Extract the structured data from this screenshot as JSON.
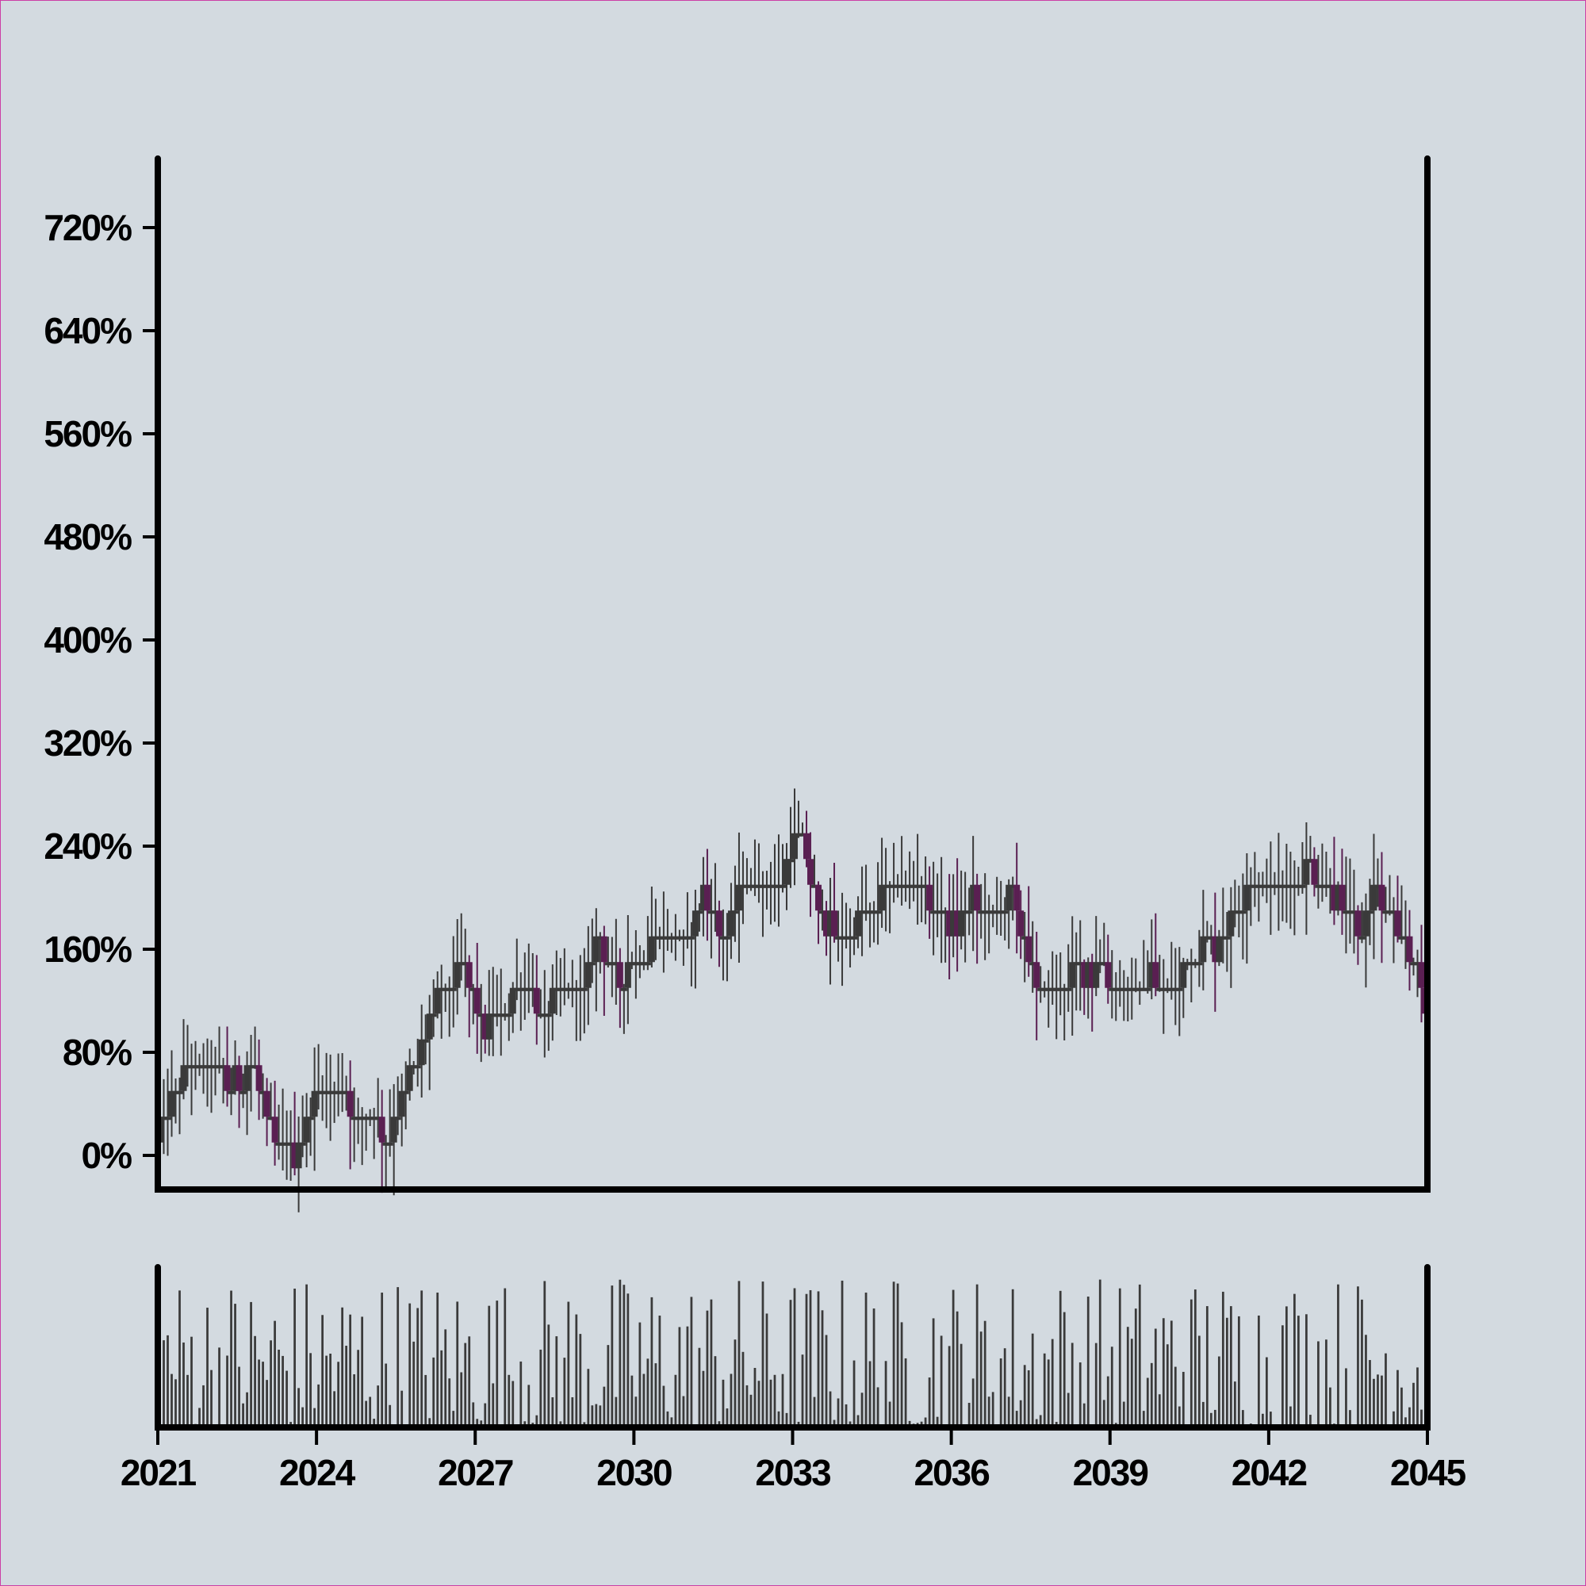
{
  "chart_data": [
    {
      "type": "candlestick",
      "panel": "price",
      "title": "",
      "xlabel": "",
      "ylabel": "",
      "x_range": [
        2021,
        2045
      ],
      "ylim": [
        -30,
        780
      ],
      "y_ticks": [
        0,
        80,
        160,
        240,
        320,
        400,
        480,
        560,
        640,
        720
      ],
      "y_tick_labels": [
        "0%",
        "80%",
        "160%",
        "240%",
        "320%",
        "400%",
        "480%",
        "560%",
        "640%",
        "720%"
      ],
      "series_path": [
        [
          2021.0,
          10
        ],
        [
          2021.4,
          50
        ],
        [
          2021.7,
          65
        ],
        [
          2022.0,
          60
        ],
        [
          2022.3,
          50
        ],
        [
          2022.8,
          55
        ],
        [
          2023.0,
          30
        ],
        [
          2023.2,
          5
        ],
        [
          2023.6,
          -15
        ],
        [
          2024.0,
          45
        ],
        [
          2024.4,
          40
        ],
        [
          2024.8,
          20
        ],
        [
          2025.4,
          10
        ],
        [
          2025.8,
          55
        ],
        [
          2026.4,
          120
        ],
        [
          2026.8,
          130
        ],
        [
          2027.2,
          90
        ],
        [
          2027.6,
          110
        ],
        [
          2028.0,
          130
        ],
        [
          2028.2,
          95
        ],
        [
          2028.6,
          120
        ],
        [
          2029.0,
          115
        ],
        [
          2029.3,
          165
        ],
        [
          2029.7,
          130
        ],
        [
          2030.1,
          140
        ],
        [
          2030.6,
          165
        ],
        [
          2031.0,
          160
        ],
        [
          2031.3,
          200
        ],
        [
          2031.7,
          155
        ],
        [
          2032.1,
          200
        ],
        [
          2032.8,
          205
        ],
        [
          2033.1,
          240
        ],
        [
          2033.6,
          170
        ],
        [
          2034.0,
          160
        ],
        [
          2034.4,
          175
        ],
        [
          2034.8,
          200
        ],
        [
          2035.3,
          205
        ],
        [
          2035.7,
          175
        ],
        [
          2036.1,
          170
        ],
        [
          2036.4,
          190
        ],
        [
          2036.7,
          175
        ],
        [
          2037.2,
          190
        ],
        [
          2037.5,
          130
        ],
        [
          2037.9,
          120
        ],
        [
          2038.4,
          130
        ],
        [
          2038.9,
          135
        ],
        [
          2039.3,
          120
        ],
        [
          2039.8,
          130
        ],
        [
          2040.2,
          115
        ],
        [
          2040.6,
          150
        ],
        [
          2041.0,
          150
        ],
        [
          2041.4,
          190
        ],
        [
          2041.8,
          200
        ],
        [
          2042.3,
          190
        ],
        [
          2042.8,
          215
        ],
        [
          2043.3,
          190
        ],
        [
          2043.7,
          160
        ],
        [
          2044.0,
          200
        ],
        [
          2044.3,
          175
        ],
        [
          2044.8,
          140
        ],
        [
          2045.0,
          90
        ]
      ],
      "colors": {
        "up": "#3a3a3a",
        "down": "#5a1f52"
      }
    },
    {
      "type": "bar",
      "panel": "volume",
      "title": "",
      "x_range": [
        2021,
        2045
      ],
      "x_ticks": [
        2021,
        2024,
        2027,
        2030,
        2033,
        2036,
        2039,
        2042,
        2045
      ],
      "x_tick_labels": [
        "2021",
        "2024",
        "2027",
        "2030",
        "2033",
        "2036",
        "2039",
        "2042",
        "2045"
      ],
      "ylim": [
        0,
        1
      ],
      "bar_count": 320,
      "color": "#3a3a3a"
    }
  ]
}
